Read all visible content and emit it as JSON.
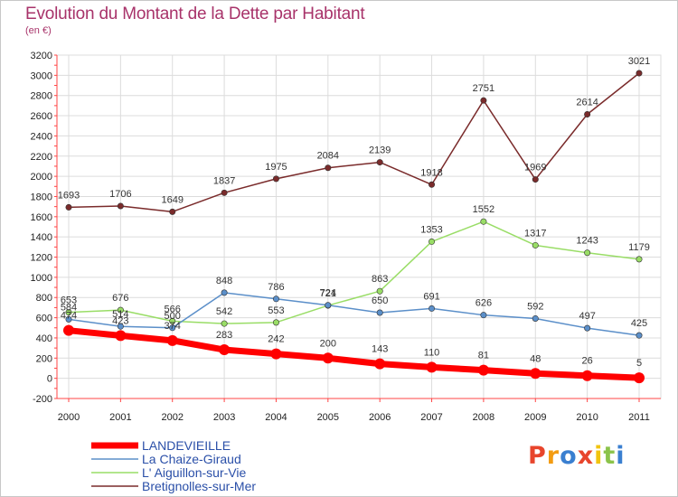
{
  "chart_data": {
    "type": "line",
    "title": "Evolution du Montant de la Dette par Habitant",
    "subtitle": "(en €)",
    "x": [
      "2000",
      "2001",
      "2002",
      "2003",
      "2004",
      "2005",
      "2006",
      "2007",
      "2008",
      "2009",
      "2010",
      "2011"
    ],
    "ylim": [
      -200,
      3200
    ],
    "yticks": [
      -200,
      0,
      200,
      400,
      600,
      800,
      1000,
      1200,
      1400,
      1600,
      1800,
      2000,
      2200,
      2400,
      2600,
      2800,
      3000,
      3200
    ],
    "grid": true,
    "legend_position": "bottom-left",
    "series": [
      {
        "name": "LANDEVIEILLE",
        "color": "#ff0000",
        "values": [
          474,
          423,
          374,
          283,
          242,
          200,
          143,
          110,
          81,
          48,
          26,
          5
        ]
      },
      {
        "name": "La Chaize-Giraud",
        "color": "#5b8fc9",
        "values": [
          584,
          514,
          500,
          848,
          786,
          724,
          650,
          691,
          626,
          592,
          497,
          425
        ]
      },
      {
        "name": "L' Aiguillon-sur-Vie",
        "color": "#99dd66",
        "values": [
          653,
          676,
          566,
          542,
          553,
          721,
          863,
          1353,
          1552,
          1317,
          1243,
          1179
        ]
      },
      {
        "name": "Bretignolles-sur-Mer",
        "color": "#7a2b2b",
        "values": [
          1693,
          1706,
          1649,
          1837,
          1975,
          2084,
          2139,
          1918,
          2751,
          1969,
          2614,
          3021
        ]
      }
    ]
  },
  "logo": {
    "letters": [
      "P",
      "r",
      "o",
      "x",
      "i",
      "t",
      "i"
    ]
  }
}
